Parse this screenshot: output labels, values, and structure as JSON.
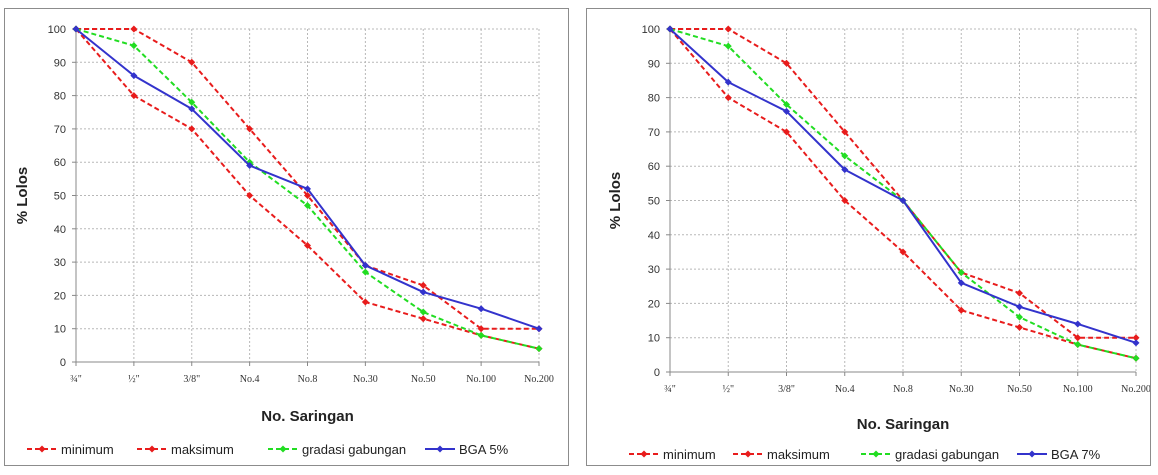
{
  "chart_data": [
    {
      "type": "line",
      "title": "",
      "xlabel": "No. Saringan",
      "ylabel": "% Lolos",
      "ylim": [
        0,
        100
      ],
      "yticks": [
        0,
        10,
        20,
        30,
        40,
        50,
        60,
        70,
        80,
        90,
        100
      ],
      "grid": true,
      "legend_position": "bottom",
      "categories": [
        "¾\"",
        "½\"",
        "3/8\"",
        "No.4",
        "No.8",
        "No.30",
        "No.50",
        "No.100",
        "No.200"
      ],
      "series": [
        {
          "name": "minimum",
          "color": "#e81c1c",
          "dashed": true,
          "values": [
            100,
            80,
            70,
            50,
            35,
            18,
            13,
            8,
            4
          ]
        },
        {
          "name": "maksimum",
          "color": "#e81c1c",
          "dashed": true,
          "values": [
            100,
            100,
            90,
            70,
            50,
            29,
            23,
            10,
            10
          ]
        },
        {
          "name": "gradasi gabungan",
          "color": "#22dd22",
          "dashed": true,
          "values": [
            100,
            95,
            78,
            60,
            47,
            27,
            15,
            8,
            4
          ]
        },
        {
          "name": "BGA 5%",
          "color": "#3333cc",
          "dashed": false,
          "values": [
            100,
            86,
            76,
            59,
            52,
            29,
            21,
            16,
            10
          ]
        }
      ]
    },
    {
      "type": "line",
      "title": "",
      "xlabel": "No. Saringan",
      "ylabel": "% Lolos",
      "ylim": [
        0,
        100
      ],
      "yticks": [
        0,
        10,
        20,
        30,
        40,
        50,
        60,
        70,
        80,
        90,
        100
      ],
      "grid": true,
      "legend_position": "bottom",
      "categories": [
        "¾\"",
        "½\"",
        "3/8\"",
        "No.4",
        "No.8",
        "No.30",
        "No.50",
        "No.100",
        "No.200"
      ],
      "series": [
        {
          "name": "minimum",
          "color": "#e81c1c",
          "dashed": true,
          "values": [
            100,
            80,
            70,
            50,
            35,
            18,
            13,
            8,
            4
          ]
        },
        {
          "name": "maksimum",
          "color": "#e81c1c",
          "dashed": true,
          "values": [
            100,
            100,
            90,
            70,
            50,
            29,
            23,
            10,
            10
          ]
        },
        {
          "name": "gradasi gabungan",
          "color": "#22dd22",
          "dashed": true,
          "values": [
            100,
            95,
            78,
            63,
            50,
            29,
            16,
            8,
            4
          ]
        },
        {
          "name": "BGA 7%",
          "color": "#3333cc",
          "dashed": false,
          "values": [
            100,
            84.5,
            76,
            59,
            50,
            26,
            19,
            14,
            8.5
          ]
        }
      ]
    }
  ]
}
